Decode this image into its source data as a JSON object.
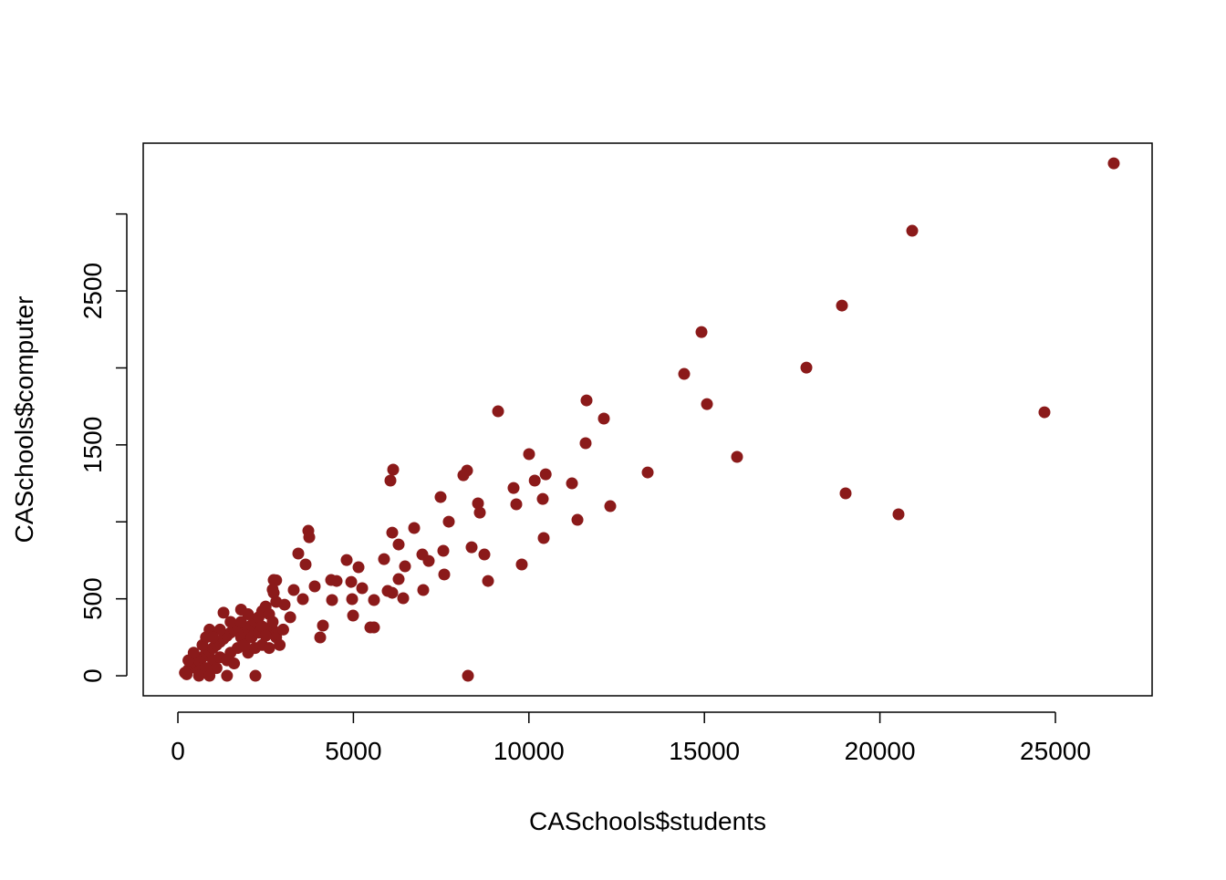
{
  "chart_data": {
    "type": "scatter",
    "x_label": "CASchools$students",
    "y_label": "CASchools$computer",
    "color": "#8b1a1a",
    "xlim": [
      -988,
      27755
    ],
    "ylim": [
      -130,
      3460
    ],
    "xticks": [
      0,
      5000,
      10000,
      15000,
      20000,
      25000
    ],
    "yticks": [
      0,
      500,
      1500,
      2500
    ],
    "yticks_unlabeled": [
      1000,
      2000,
      3000
    ],
    "x": [
      26663,
      20920,
      18919,
      14917,
      14423,
      17906,
      24688,
      15073,
      15930,
      19023,
      20530,
      9122,
      11642,
      12136,
      11616,
      10005,
      13384,
      11227,
      10478,
      10166,
      10395,
      12318,
      11383,
      10421,
      9563,
      9641,
      9797,
      8836,
      8732,
      8368,
      8238,
      8134,
      8550,
      8602,
      7718,
      7484,
      7562,
      7588,
      6965,
      7146,
      6990,
      8264,
      6133,
      6055,
      6107,
      6731,
      6289,
      6471,
      5873,
      6289,
      6107,
      6419,
      5977,
      4808,
      5146,
      5250,
      4938,
      4964,
      4990,
      5587,
      5483,
      5587,
      4366,
      4522,
      4392,
      4132,
      4054,
      3898,
      3716,
      3742,
      3430,
      3638,
      3300,
      3560,
      3040,
      2729,
      2729,
      2209,
      200,
      300,
      400,
      250,
      500,
      600,
      700,
      800,
      900,
      1000,
      1100,
      1200,
      1300,
      1400,
      1500,
      1600,
      1700,
      1800,
      1900,
      2000,
      2100,
      2200,
      2300,
      2400,
      2500,
      2600,
      2700,
      2800,
      2900,
      1300,
      1800,
      900,
      1000,
      1100,
      1500,
      1700,
      2000,
      2200,
      2400,
      2600,
      1200,
      1400,
      600,
      800,
      1600,
      300,
      450,
      700,
      1900,
      2100,
      2300,
      2500,
      2700,
      1200,
      800,
      1500,
      2000,
      2400,
      3000,
      3200,
      2800,
      2700,
      2800,
      1400,
      600,
      900,
      2500,
      1000,
      1800
    ],
    "values": [
      3329,
      2891,
      2405,
      2233,
      1961,
      2002,
      1712,
      1765,
      1422,
      1185,
      1049,
      1718,
      1789,
      1671,
      1511,
      1440,
      1321,
      1250,
      1309,
      1268,
      1149,
      1102,
      1013,
      895,
      1220,
      1114,
      723,
      616,
      788,
      835,
      1333,
      1303,
      1120,
      1060,
      1001,
      1161,
      812,
      658,
      788,
      746,
      557,
      0,
      1339,
      1268,
      930,
      960,
      853,
      711,
      758,
      628,
      539,
      504,
      551,
      752,
      705,
      569,
      610,
      498,
      391,
      492,
      314,
      314,
      622,
      616,
      492,
      326,
      249,
      581,
      942,
      900,
      794,
      723,
      557,
      498,
      462,
      622,
      539,
      0,
      20,
      40,
      60,
      10,
      80,
      100,
      120,
      150,
      160,
      180,
      200,
      220,
      240,
      260,
      280,
      300,
      320,
      250,
      280,
      300,
      330,
      350,
      380,
      420,
      450,
      400,
      300,
      250,
      200,
      410,
      430,
      300,
      100,
      50,
      150,
      180,
      150,
      180,
      200,
      180,
      120,
      100,
      30,
      50,
      80,
      100,
      150,
      200,
      200,
      250,
      280,
      300,
      350,
      300,
      250,
      350,
      400,
      320,
      300,
      380,
      480,
      560,
      620,
      0,
      0,
      0,
      260,
      250,
      350
    ]
  }
}
